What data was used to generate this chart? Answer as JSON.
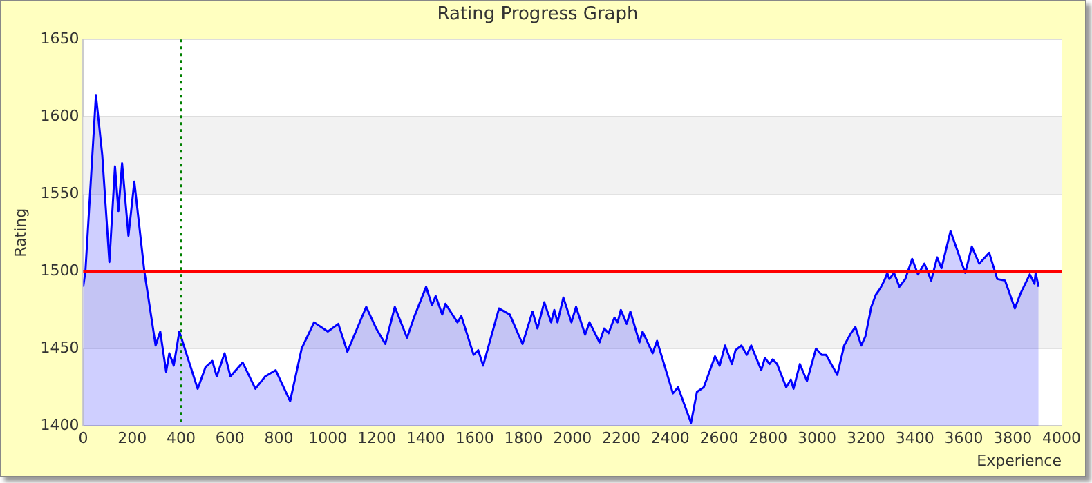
{
  "chart_data": {
    "type": "area",
    "title": "Rating Progress Graph",
    "xlabel": "Experience",
    "ylabel": "Rating",
    "xlim": [
      0,
      4000
    ],
    "xticks": [
      0,
      200,
      400,
      600,
      800,
      1000,
      1200,
      1400,
      1600,
      1800,
      2000,
      2200,
      2400,
      2600,
      2800,
      3000,
      3200,
      3400,
      3600,
      3800,
      4000
    ],
    "ylim": [
      1400,
      1650
    ],
    "yticks": [
      1400,
      1450,
      1500,
      1550,
      1600,
      1650
    ],
    "grid": "y",
    "legend": false,
    "marker": "none",
    "line_style": "solid",
    "bands": [
      {
        "axis": "y",
        "from": 1450,
        "to": 1500,
        "color": "#f2f2f2"
      },
      {
        "axis": "y",
        "from": 1550,
        "to": 1600,
        "color": "#f2f2f2"
      }
    ],
    "ref_lines": [
      {
        "axis": "y",
        "value": 1500,
        "color": "#ff0000",
        "line_style": "solid"
      },
      {
        "axis": "x",
        "value": 400,
        "color": "#008000",
        "line_style": "dotted"
      }
    ],
    "series": [
      {
        "color": "#0000ff",
        "x": [
          0,
          9,
          52,
          78,
          107,
          130,
          144,
          159,
          185,
          209,
          250,
          296,
          315,
          339,
          352,
          370,
          393,
          468,
          500,
          528,
          546,
          578,
          602,
          652,
          704,
          744,
          787,
          846,
          893,
          944,
          1000,
          1043,
          1080,
          1157,
          1198,
          1235,
          1274,
          1324,
          1352,
          1402,
          1426,
          1441,
          1468,
          1481,
          1530,
          1546,
          1596,
          1615,
          1635,
          1700,
          1744,
          1796,
          1837,
          1857,
          1885,
          1913,
          1926,
          1939,
          1963,
          1996,
          2015,
          2052,
          2070,
          2111,
          2130,
          2148,
          2172,
          2185,
          2198,
          2222,
          2237,
          2274,
          2287,
          2328,
          2346,
          2411,
          2432,
          2485,
          2509,
          2537,
          2583,
          2602,
          2624,
          2652,
          2667,
          2691,
          2713,
          2731,
          2772,
          2787,
          2806,
          2819,
          2837,
          2874,
          2893,
          2904,
          2930,
          2959,
          2996,
          3019,
          3037,
          3083,
          3111,
          3139,
          3157,
          3181,
          3198,
          3222,
          3241,
          3259,
          3278,
          3287,
          3296,
          3315,
          3337,
          3361,
          3389,
          3413,
          3439,
          3467,
          3491,
          3509,
          3546,
          3606,
          3633,
          3663,
          3681,
          3704,
          3737,
          3769,
          3809,
          3833,
          3870,
          3889,
          3894,
          3906
        ],
        "values": [
          1490,
          1500,
          1614,
          1575,
          1506,
          1568,
          1539,
          1570,
          1523,
          1558,
          1500,
          1452,
          1461,
          1435,
          1447,
          1439,
          1461,
          1424,
          1438,
          1442,
          1432,
          1447,
          1432,
          1441,
          1424,
          1432,
          1436,
          1416,
          1450,
          1467,
          1461,
          1466,
          1448,
          1477,
          1463,
          1453,
          1477,
          1457,
          1470,
          1490,
          1478,
          1484,
          1472,
          1479,
          1467,
          1471,
          1446,
          1449,
          1439,
          1476,
          1472,
          1453,
          1474,
          1463,
          1480,
          1467,
          1475,
          1467,
          1483,
          1467,
          1477,
          1459,
          1467,
          1454,
          1463,
          1460,
          1470,
          1467,
          1475,
          1466,
          1474,
          1454,
          1461,
          1447,
          1455,
          1421,
          1425,
          1402,
          1422,
          1425,
          1445,
          1439,
          1452,
          1440,
          1449,
          1452,
          1446,
          1452,
          1436,
          1444,
          1440,
          1443,
          1440,
          1425,
          1430,
          1424,
          1440,
          1429,
          1450,
          1446,
          1446,
          1433,
          1452,
          1460,
          1464,
          1452,
          1458,
          1477,
          1485,
          1489,
          1495,
          1499,
          1495,
          1499,
          1490,
          1495,
          1508,
          1498,
          1505,
          1494,
          1509,
          1502,
          1526,
          1499,
          1516,
          1505,
          1508,
          1512,
          1495,
          1494,
          1476,
          1486,
          1498,
          1492,
          1499,
          1490
        ]
      }
    ]
  }
}
